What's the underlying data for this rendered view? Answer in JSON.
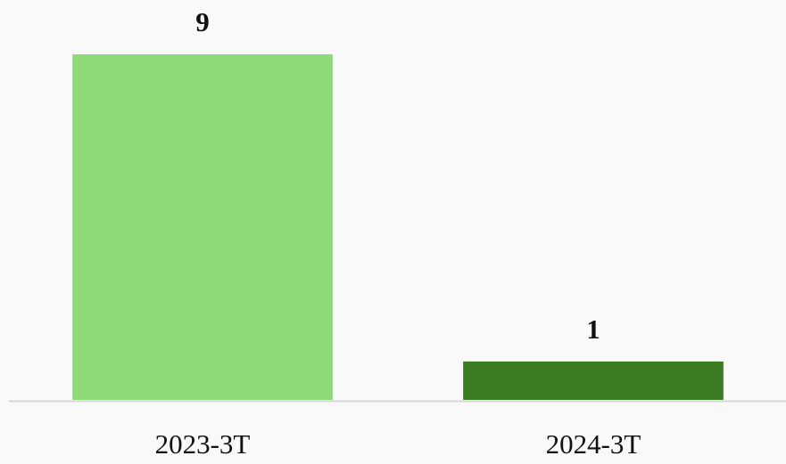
{
  "chart_data": {
    "type": "bar",
    "categories": [
      "2023-3T",
      "2024-3T"
    ],
    "values": [
      9,
      1
    ],
    "colors": [
      "#90d977",
      "#3c7d23"
    ]
  }
}
